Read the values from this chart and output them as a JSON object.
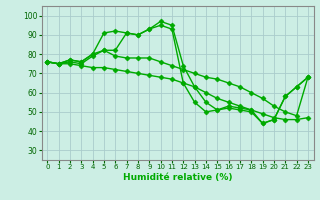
{
  "x": [
    0,
    1,
    2,
    3,
    4,
    5,
    6,
    7,
    8,
    9,
    10,
    11,
    12,
    13,
    14,
    15,
    16,
    17,
    18,
    19,
    20,
    21,
    22,
    23
  ],
  "line1": [
    76,
    75,
    77,
    76,
    80,
    91,
    92,
    91,
    90,
    93,
    97,
    95,
    74,
    63,
    55,
    51,
    53,
    52,
    51,
    44,
    46,
    58,
    63,
    68
  ],
  "line2": [
    76,
    75,
    77,
    76,
    80,
    82,
    82,
    91,
    90,
    93,
    95,
    93,
    65,
    55,
    50,
    51,
    52,
    51,
    50,
    44,
    46,
    58,
    63,
    68
  ],
  "line3": [
    76,
    75,
    76,
    75,
    79,
    82,
    79,
    78,
    78,
    78,
    76,
    74,
    72,
    70,
    68,
    67,
    65,
    63,
    60,
    57,
    53,
    50,
    48,
    68
  ],
  "line4": [
    76,
    75,
    75,
    74,
    73,
    73,
    72,
    71,
    70,
    69,
    68,
    67,
    65,
    63,
    60,
    57,
    55,
    53,
    51,
    49,
    47,
    46,
    46,
    47
  ],
  "line_color": "#00aa00",
  "bg_color": "#cceee4",
  "grid_color": "#aacccc",
  "xlabel": "Humidité relative (%)",
  "ylim": [
    25,
    105
  ],
  "xlim": [
    -0.5,
    23.5
  ],
  "yticks": [
    30,
    40,
    50,
    60,
    70,
    80,
    90,
    100
  ],
  "xticks": [
    0,
    1,
    2,
    3,
    4,
    5,
    6,
    7,
    8,
    9,
    10,
    11,
    12,
    13,
    14,
    15,
    16,
    17,
    18,
    19,
    20,
    21,
    22,
    23
  ],
  "markersize": 2.5,
  "linewidth": 1.0
}
